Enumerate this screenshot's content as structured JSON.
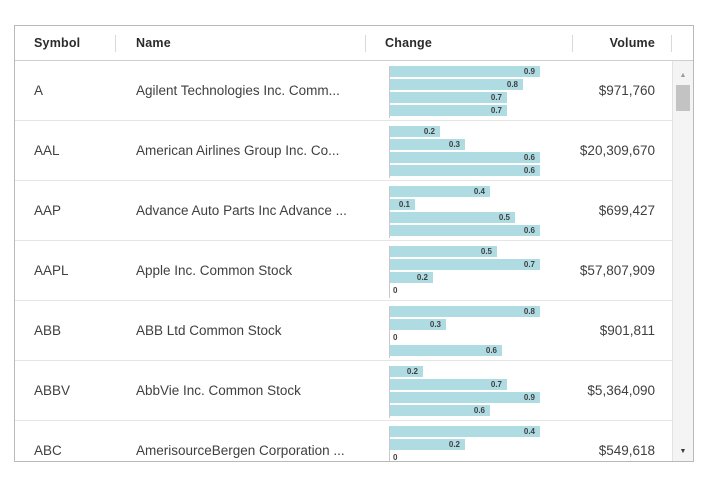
{
  "grid": {
    "header": {
      "columns": [
        {
          "label": "Symbol"
        },
        {
          "label": "Name"
        },
        {
          "label": "Change"
        },
        {
          "label": "Volume"
        }
      ]
    },
    "rows": [
      {
        "symbol": "A",
        "name": "Agilent Technologies Inc. Comm...",
        "change": [
          0.9,
          0.8,
          0.7,
          0.7
        ],
        "volume": "$971,760"
      },
      {
        "symbol": "AAL",
        "name": "American Airlines Group Inc. Co...",
        "change": [
          0.2,
          0.3,
          0.6,
          0.6
        ],
        "volume": "$20,309,670"
      },
      {
        "symbol": "AAP",
        "name": "Advance Auto Parts Inc Advance ...",
        "change": [
          0.4,
          0.1,
          0.5,
          0.6
        ],
        "volume": "$699,427"
      },
      {
        "symbol": "AAPL",
        "name": "Apple Inc. Common Stock",
        "change": [
          0.5,
          0.7,
          0.2,
          0
        ],
        "volume": "$57,807,909"
      },
      {
        "symbol": "ABB",
        "name": "ABB Ltd Common Stock",
        "change": [
          0.8,
          0.3,
          0,
          0.6
        ],
        "volume": "$901,811"
      },
      {
        "symbol": "ABBV",
        "name": "AbbVie Inc. Common Stock",
        "change": [
          0.2,
          0.7,
          0.9,
          0.6
        ],
        "volume": "$5,364,090"
      },
      {
        "symbol": "ABC",
        "name": "AmerisourceBergen Corporation ...",
        "change": [
          0.4,
          0.2,
          0
        ],
        "volume": "$549,618"
      }
    ]
  },
  "scrollbar": {
    "up_icon": "▲",
    "down_icon": "▼"
  },
  "colors": {
    "bar_fill": "#afdbe3",
    "bar_label": "#3f3f3f",
    "header_text": "#2b2b2b",
    "cell_text": "#404040",
    "row_border": "#e5e5e5",
    "grid_border": "#b9b9b9"
  }
}
